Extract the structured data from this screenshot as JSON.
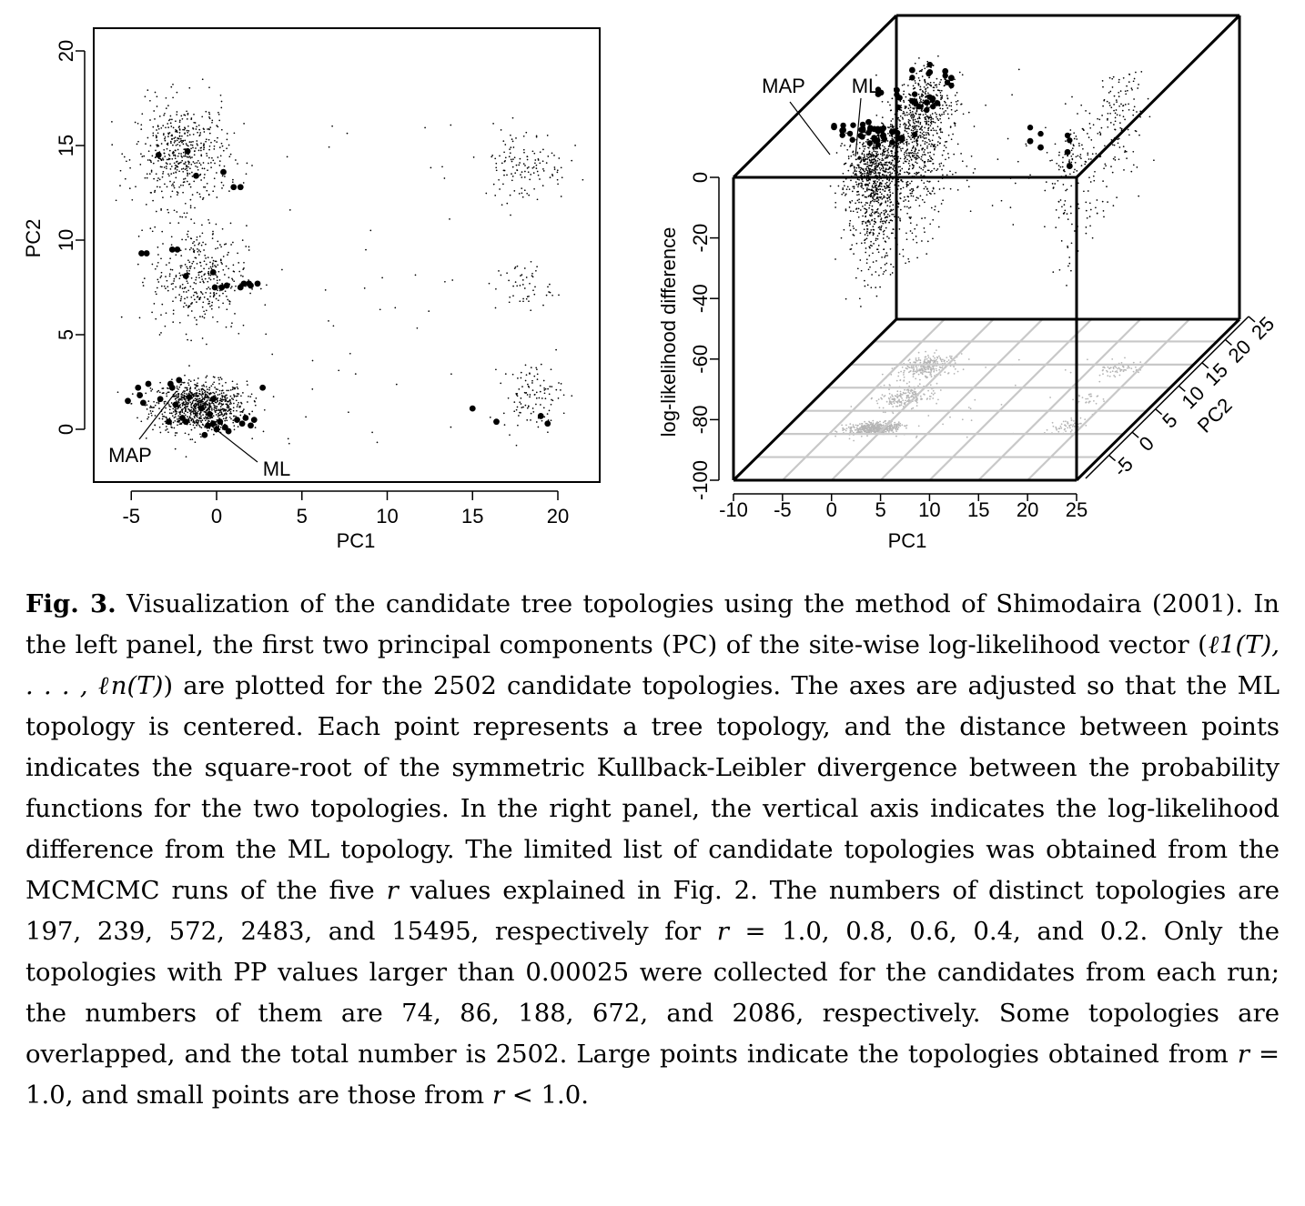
{
  "caption": {
    "label": "Fig. 3.",
    "t1": " Visualization of the candidate tree topologies using the method of Shimodaira (2001). In the left panel, the first two principal components (PC) of the site-wise log-likelihood vector (",
    "math_vector": "ℓ1(T), . . . , ℓn(T)",
    "t2": ") are plotted for the 2502 candidate topologies. The axes are adjusted so that the ML topology is centered. Each point represents a tree topology, and the distance between points indicates the square-root of the symmetric Kullback-Leibler divergence between the probability functions for the two topologies. In the right panel, the vertical axis indicates the log-likelihood difference from the ML topology. The limited list of candidate topologies was obtained from the MCMCMC runs of the five ",
    "var_r1": "r",
    "t3": " values explained in Fig. 2. The numbers of distinct topologies are 197, 239, 572, 2483, and 15495, respectively for ",
    "var_r2": "r",
    "t4": " = 1.0, 0.8, 0.6, 0.4, and 0.2. Only the topologies with PP values larger than 0.00025 were collected for the candidates from each run; the numbers of them are 74, 86, 188, 672, and 2086, respectively. Some topologies are overlapped, and the total number is 2502. Large points indicate the topologies obtained from ",
    "var_r3": "r",
    "t5": " = 1.0, and small points are those from ",
    "var_r4": "r",
    "t6": " < 1.0."
  },
  "chart_data": [
    {
      "type": "scatter",
      "panel": "left",
      "xlabel": "PC1",
      "ylabel": "PC2",
      "xlim": [
        -7,
        22.5
      ],
      "ylim": [
        -3,
        21
      ],
      "xticks": [
        -5,
        0,
        5,
        10,
        15,
        20
      ],
      "yticks": [
        0,
        5,
        10,
        15,
        20
      ],
      "annotations": [
        {
          "text": "MAP",
          "target": [
            -2.6,
            2.2
          ]
        },
        {
          "text": "ML",
          "target": [
            0,
            0
          ]
        }
      ],
      "large_points": [
        [
          -5.2,
          1.5
        ],
        [
          -4.6,
          2.2
        ],
        [
          -4.5,
          1.8
        ],
        [
          -4.3,
          1.4
        ],
        [
          -4.0,
          2.4
        ],
        [
          -3.3,
          1.6
        ],
        [
          -2.7,
          2.4
        ],
        [
          -2.6,
          2.2
        ],
        [
          -2.4,
          1.3
        ],
        [
          -2.2,
          2.6
        ],
        [
          -2.0,
          0.6
        ],
        [
          -1.6,
          1.7
        ],
        [
          -1.8,
          0.4
        ],
        [
          -2.8,
          0.4
        ],
        [
          -0.9,
          1.1
        ],
        [
          -0.4,
          0.8
        ],
        [
          -0.2,
          1.6
        ],
        [
          -0.5,
          0.2
        ],
        [
          -0.2,
          0.3
        ],
        [
          0.0,
          0.0
        ],
        [
          0.2,
          0.4
        ],
        [
          0.5,
          0.1
        ],
        [
          0.7,
          -0.1
        ],
        [
          -0.7,
          -0.3
        ],
        [
          1.2,
          0.5
        ],
        [
          1.5,
          0.3
        ],
        [
          1.7,
          0.6
        ],
        [
          2.0,
          0.2
        ],
        [
          2.2,
          0.5
        ],
        [
          2.7,
          2.2
        ],
        [
          -4.4,
          9.3
        ],
        [
          -4.1,
          9.3
        ],
        [
          -2.6,
          9.5
        ],
        [
          -2.3,
          9.5
        ],
        [
          -1.8,
          8.1
        ],
        [
          -0.2,
          8.3
        ],
        [
          -0.1,
          7.5
        ],
        [
          0.3,
          7.5
        ],
        [
          0.6,
          7.6
        ],
        [
          1.4,
          7.5
        ],
        [
          1.6,
          7.7
        ],
        [
          1.9,
          7.7
        ],
        [
          2.4,
          7.7
        ],
        [
          2.0,
          7.6
        ],
        [
          -3.4,
          14.5
        ],
        [
          -1.7,
          14.7
        ],
        [
          -1.2,
          13.4
        ],
        [
          0.4,
          13.6
        ],
        [
          1.0,
          12.8
        ],
        [
          1.4,
          12.8
        ],
        [
          15.0,
          1.1
        ],
        [
          16.4,
          0.4
        ],
        [
          19.0,
          0.7
        ],
        [
          19.4,
          0.3
        ]
      ],
      "small_points": {
        "count": 2502,
        "clusters": [
          {
            "center": [
              -1,
              1.2
            ],
            "spread": [
              2.5,
              1.2
            ]
          },
          {
            "center": [
              -2,
              14.5
            ],
            "spread": [
              2.5,
              2.5
            ]
          },
          {
            "center": [
              -1,
              8
            ],
            "spread": [
              2.5,
              2.5
            ]
          },
          {
            "center": [
              18,
              14
            ],
            "spread": [
              2.3,
              1.8
            ]
          },
          {
            "center": [
              18.5,
              1.8
            ],
            "spread": [
              1.6,
              1.6
            ]
          },
          {
            "center": [
              18,
              7.5
            ],
            "spread": [
              1.5,
              1.2
            ]
          }
        ]
      }
    },
    {
      "type": "scatter",
      "panel": "right-3d",
      "xlabel": "PC1",
      "ylabel": "PC2",
      "zlabel": "log-likelihood difference",
      "xlim": [
        -10,
        25
      ],
      "ylim": [
        -10,
        25
      ],
      "zlim": [
        -100,
        0
      ],
      "xticks": [
        -10,
        -5,
        0,
        5,
        10,
        15,
        20,
        25
      ],
      "yticks": [
        -5,
        0,
        5,
        10,
        15,
        20,
        25
      ],
      "zticks": [
        -100,
        -80,
        -60,
        -40,
        -20,
        0
      ],
      "annotations": [
        {
          "text": "MAP",
          "target": [
            -2.6,
            2.2,
            -2
          ]
        },
        {
          "text": "ML",
          "target": [
            0,
            0,
            0
          ]
        }
      ],
      "large_points_sample": [
        [
          -5.2,
          1.5,
          -1
        ],
        [
          -4.6,
          2.2,
          -3
        ],
        [
          -4.3,
          1.4,
          -2
        ],
        [
          -2.6,
          2.2,
          -3
        ],
        [
          -2.2,
          2.6,
          -1
        ],
        [
          -1.6,
          1.7,
          -2
        ],
        [
          -0.9,
          1.1,
          -1
        ],
        [
          0.0,
          0.0,
          0
        ],
        [
          0.5,
          0.1,
          -2
        ],
        [
          1.2,
          0.5,
          -1
        ],
        [
          2.2,
          0.5,
          -3
        ],
        [
          -4.4,
          9.3,
          -2
        ],
        [
          -2.6,
          9.5,
          -1
        ],
        [
          -0.2,
          8.3,
          -3
        ],
        [
          1.4,
          7.5,
          -2
        ],
        [
          1.9,
          7.7,
          -1
        ],
        [
          -3.4,
          14.5,
          -2
        ],
        [
          -1.7,
          14.7,
          -3
        ],
        [
          0.4,
          13.6,
          -1
        ],
        [
          1.4,
          12.8,
          -2
        ],
        [
          15.0,
          1.1,
          -5
        ],
        [
          16.4,
          0.4,
          -6
        ],
        [
          19.0,
          0.7,
          -8
        ],
        [
          19.4,
          0.3,
          -12
        ]
      ]
    }
  ]
}
